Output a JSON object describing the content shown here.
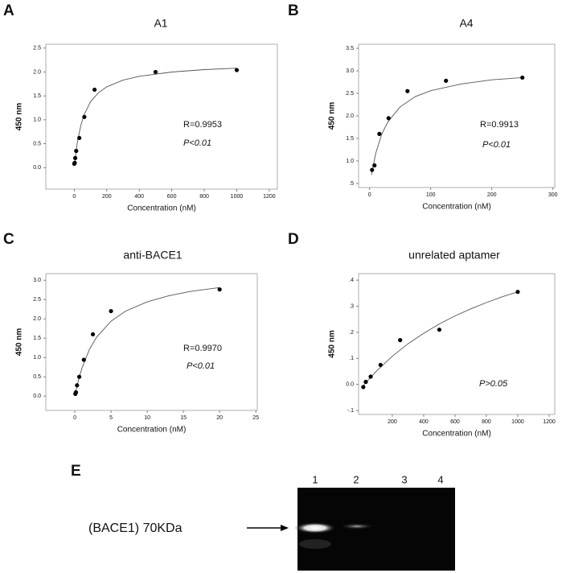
{
  "panels": [
    "A",
    "B",
    "C",
    "D",
    "E"
  ],
  "gel": {
    "lanes": [
      "1",
      "2",
      "3",
      "4"
    ],
    "marker": "(BACE1) 70KDa"
  },
  "chart_data": [
    {
      "type": "scatter",
      "title": "A1",
      "x_label": "Concentration (nM)",
      "y_label": "450 nm",
      "x": [
        0,
        3,
        6,
        12,
        31,
        62,
        125,
        500,
        1000
      ],
      "values": [
        0.08,
        0.1,
        0.2,
        0.35,
        0.62,
        1.06,
        1.63,
        2.0,
        2.04
      ],
      "fit": {
        "x": [
          3,
          10,
          20,
          40,
          60,
          100,
          150,
          200,
          300,
          400,
          600,
          800,
          1000
        ],
        "values": [
          0.1,
          0.31,
          0.55,
          0.88,
          1.1,
          1.38,
          1.57,
          1.69,
          1.83,
          1.91,
          2.0,
          2.05,
          2.08
        ]
      },
      "xlim": [
        -175,
        1250
      ],
      "xticks": [
        0,
        200,
        400,
        600,
        800,
        1000,
        1200
      ],
      "ylim": [
        -0.45,
        2.58
      ],
      "yticks": [
        {
          "value": 0,
          "label": "0.0"
        },
        0.5,
        {
          "value": 1,
          "label": "1.0"
        },
        1.5,
        {
          "value": 2,
          "label": "2.0"
        },
        2.5
      ],
      "annotations": [
        "R=0.9953",
        "P<0.01"
      ],
      "color": "#000000"
    },
    {
      "type": "scatter",
      "title": "A4",
      "x_label": "Concentration (nM)",
      "y_label": "450 nm",
      "x": [
        4,
        8,
        16,
        31,
        62,
        125,
        250
      ],
      "values": [
        0.8,
        0.9,
        1.6,
        1.95,
        2.55,
        2.78,
        2.85
      ],
      "fit": {
        "x": [
          3,
          10,
          20,
          30,
          50,
          75,
          100,
          150,
          200,
          250
        ],
        "values": [
          0.69,
          1.17,
          1.6,
          1.87,
          2.2,
          2.43,
          2.56,
          2.71,
          2.8,
          2.85
        ]
      },
      "xlim": [
        -18,
        303
      ],
      "xticks": [
        0,
        100,
        200,
        300
      ],
      "ylim": [
        0.41,
        3.59
      ],
      "yticks": [
        {
          "value": 0.5,
          "label": ".5"
        },
        {
          "value": 1,
          "label": "1.0"
        },
        1.5,
        {
          "value": 2,
          "label": "2.0"
        },
        2.5,
        {
          "value": 3,
          "label": "3.0"
        },
        3.5
      ],
      "annotations": [
        "R=0.9913",
        "P<0.01"
      ],
      "color": "#000000"
    },
    {
      "type": "scatter",
      "title": "anti-BACE1",
      "x_label": "Concentration (nM)",
      "y_label": "450 nm",
      "x": [
        0.08,
        0.16,
        0.31,
        0.62,
        1.25,
        2.5,
        5,
        20
      ],
      "values": [
        0.06,
        0.1,
        0.28,
        0.5,
        0.94,
        1.6,
        2.2,
        2.76
      ],
      "fit": {
        "x": [
          0.05,
          0.5,
          1,
          2,
          3,
          5,
          7,
          10,
          13,
          16,
          20
        ],
        "values": [
          0.05,
          0.41,
          0.73,
          1.2,
          1.52,
          1.94,
          2.2,
          2.44,
          2.6,
          2.71,
          2.81
        ]
      },
      "xlim": [
        -4,
        25.2
      ],
      "xticks": [
        0,
        5,
        10,
        15,
        20,
        25
      ],
      "ylim": [
        -0.37,
        3.17
      ],
      "yticks": [
        {
          "value": 0,
          "label": "0.0"
        },
        0.5,
        {
          "value": 1,
          "label": "1.0"
        },
        1.5,
        {
          "value": 2,
          "label": "2.0"
        },
        2.5,
        {
          "value": 3,
          "label": "3.0"
        }
      ],
      "annotations": [
        "R=0.9970",
        "P<0.01"
      ],
      "color": "#000000"
    },
    {
      "type": "scatter",
      "title": "unrelated aptamer",
      "x_label": "Concentration (nM)",
      "y_label": "450 nm",
      "x": [
        15,
        31,
        62,
        125,
        250,
        500,
        1000
      ],
      "values": [
        -0.01,
        0.01,
        0.03,
        0.075,
        0.17,
        0.21,
        0.355
      ],
      "fit": {
        "x": [
          15,
          100,
          200,
          300,
          400,
          500,
          600,
          700,
          800,
          900,
          1000
        ],
        "values": [
          -0.004,
          0.052,
          0.108,
          0.156,
          0.196,
          0.232,
          0.263,
          0.29,
          0.314,
          0.336,
          0.355
        ]
      },
      "xlim": [
        -15,
        1236
      ],
      "xticks": [
        200,
        400,
        600,
        800,
        1000,
        1200
      ],
      "ylim": [
        -0.115,
        0.425
      ],
      "yticks": [
        {
          "value": -0.1,
          "label": "-.1"
        },
        {
          "value": 0,
          "label": "0.0"
        },
        {
          "value": 0.1,
          "label": ".1"
        },
        {
          "value": 0.2,
          "label": ".2"
        },
        {
          "value": 0.3,
          "label": ".3"
        },
        {
          "value": 0.4,
          "label": ".4"
        }
      ],
      "annotations": [
        "P>0.05"
      ],
      "color": "#000000"
    }
  ]
}
